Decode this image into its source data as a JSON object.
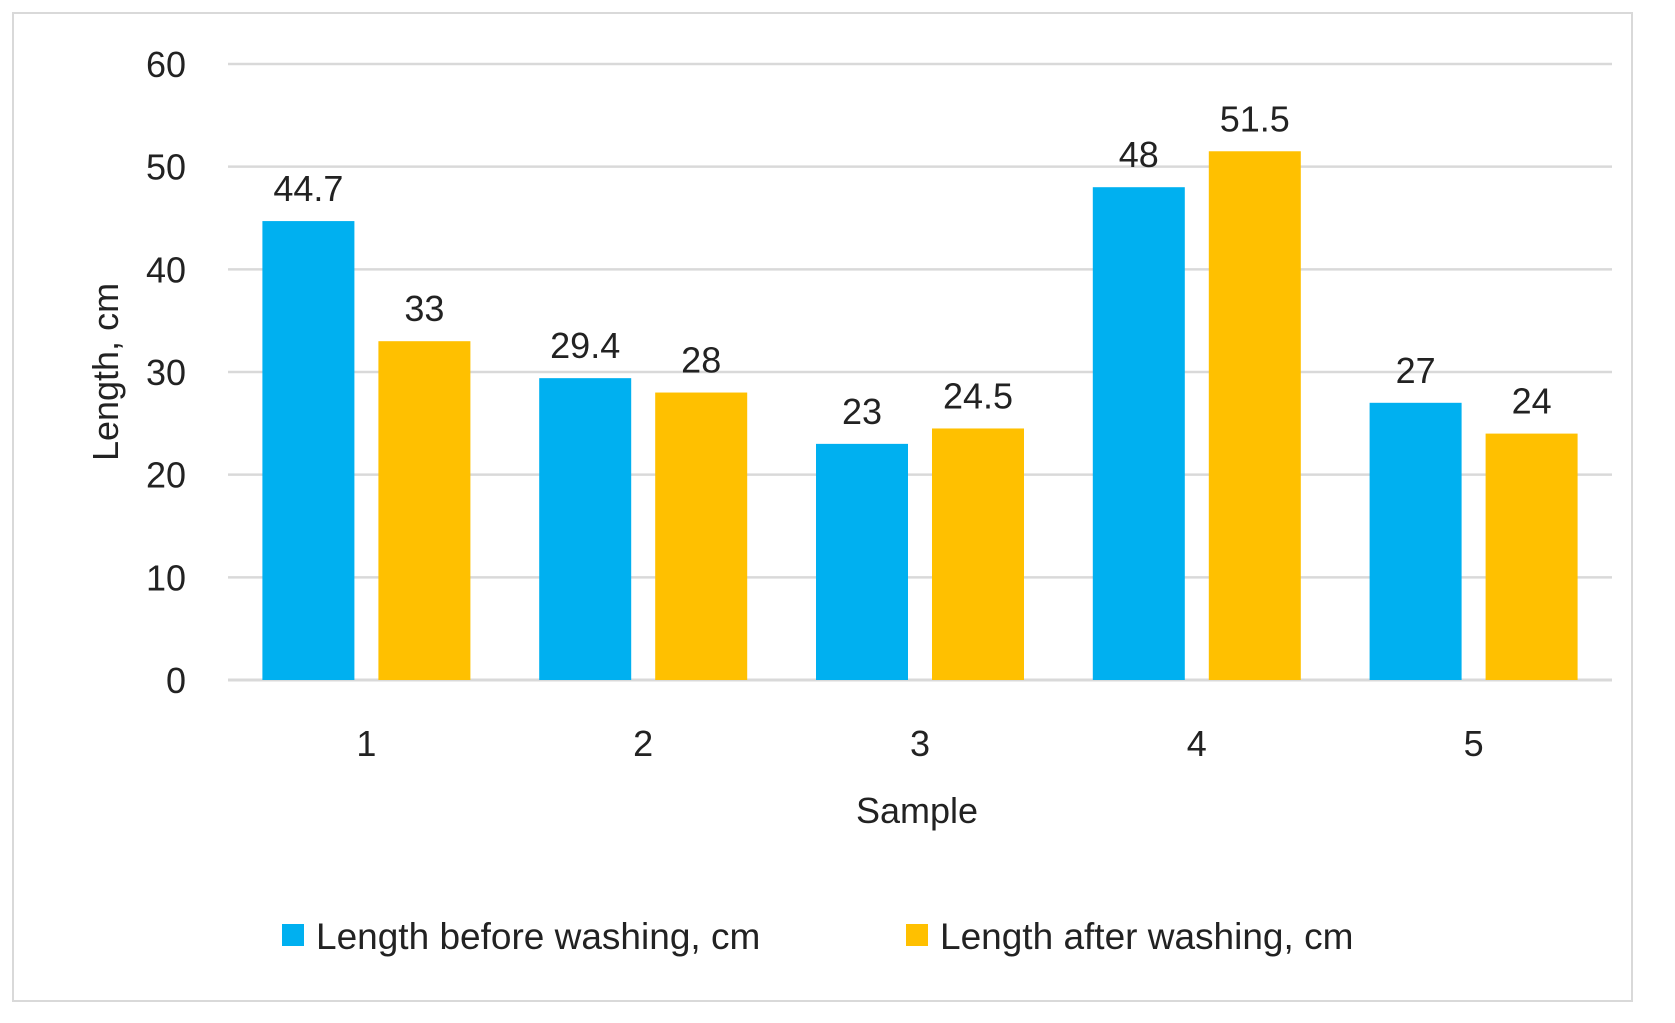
{
  "chart_data": {
    "type": "bar",
    "title": "",
    "xlabel": "Sample",
    "ylabel": "Length, cm",
    "ylim": [
      0,
      60
    ],
    "yticks": [
      "0",
      "10",
      "20",
      "30",
      "40",
      "50",
      "60"
    ],
    "categories": [
      "1",
      "2",
      "3",
      "4",
      "5"
    ],
    "series": [
      {
        "name": "Length before washing, cm",
        "color": "#00b0f0",
        "values": [
          44.7,
          29.4,
          23,
          48,
          27
        ],
        "labels": [
          "44.7",
          "29.4",
          "23",
          "48",
          "27"
        ]
      },
      {
        "name": "Length after washing, cm",
        "color": "#ffc000",
        "values": [
          33,
          28,
          24.5,
          51.5,
          24
        ],
        "labels": [
          "33",
          "28",
          "24.5",
          "51.5",
          "24"
        ]
      }
    ],
    "grid": true,
    "gridline_color": "#d9d9d9",
    "legend_position": "bottom"
  }
}
